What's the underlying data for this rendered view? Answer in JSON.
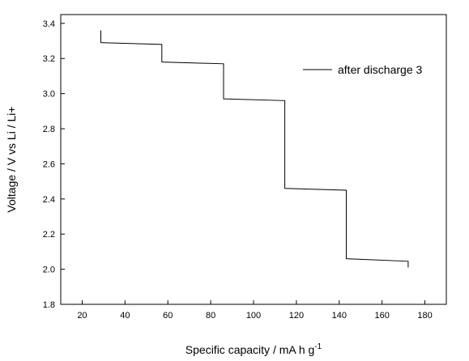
{
  "chart_data": {
    "type": "line",
    "xlabel": "Specific capacity / mA h g",
    "xlabel_superscript": "-1",
    "ylabel": "Voltage / V vs Li / Li+",
    "xlim": [
      10,
      190
    ],
    "ylim": [
      1.8,
      3.45
    ],
    "x_ticks": [
      20,
      40,
      60,
      80,
      100,
      120,
      140,
      160,
      180
    ],
    "y_ticks": [
      1.8,
      2.0,
      2.2,
      2.4,
      2.6,
      2.8,
      3.0,
      3.2,
      3.4
    ],
    "x_tick_labels": [
      "20",
      "40",
      "60",
      "80",
      "100",
      "120",
      "140",
      "160",
      "180"
    ],
    "y_tick_labels": [
      "1.8",
      "2.0",
      "2.2",
      "2.4",
      "2.6",
      "2.8",
      "3.0",
      "3.2",
      "3.4"
    ],
    "legend_position": "top-right",
    "grid": false,
    "series": [
      {
        "name": "after discharge 3",
        "color": "#000000",
        "x": [
          28.7,
          28.7,
          57.2,
          57.2,
          86.0,
          86.0,
          114.6,
          114.6,
          143.3,
          143.3,
          172.2,
          172.2
        ],
        "y": [
          3.36,
          3.29,
          3.28,
          3.18,
          3.17,
          2.97,
          2.96,
          2.46,
          2.45,
          2.06,
          2.045,
          2.01
        ]
      }
    ]
  }
}
